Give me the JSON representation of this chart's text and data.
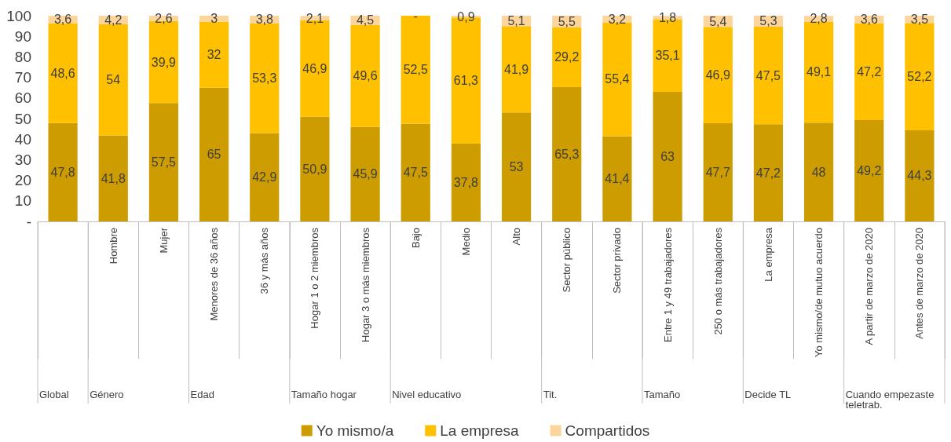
{
  "chart_data": {
    "type": "bar",
    "stacked": true,
    "categories": [
      null,
      "Hombre",
      "Mujer",
      "Menores de 36 años",
      "36 y más años",
      "Hogar 1 o 2 miembros",
      "Hogar 3 o más miembros",
      "Bajo",
      "Medio",
      "Alto",
      "Sector público",
      "Sector privado",
      "Entre 1 y 49 trabajadores",
      "250 o más trabajadores",
      "La empresa",
      "Yo mismo/de mutuo acuerdo",
      "A partir de marzo de 2020",
      "Antes de marzo de 2020"
    ],
    "series": [
      {
        "name": "Yo mismo/a",
        "color": "#cc9c00",
        "values": [
          47.8,
          41.8,
          57.5,
          65,
          42.9,
          50.9,
          45.9,
          47.5,
          37.8,
          53,
          65.3,
          41.4,
          63,
          47.7,
          47.2,
          48,
          49.2,
          44.3
        ],
        "value_labels": [
          "47,8",
          "41,8",
          "57,5",
          "65",
          "42,9",
          "50,9",
          "45,9",
          "47,5",
          "37,8",
          "53",
          "65,3",
          "41,4",
          "63",
          "47,7",
          "47,2",
          "48",
          "49,2",
          "44,3"
        ]
      },
      {
        "name": "La empresa",
        "color": "#ffc000",
        "values": [
          48.6,
          54,
          39.9,
          32,
          53.3,
          46.9,
          49.6,
          52.5,
          61.3,
          41.9,
          29.2,
          55.4,
          35.1,
          46.9,
          47.5,
          49.1,
          47.2,
          52.2
        ],
        "value_labels": [
          "48,6",
          "54",
          "39,9",
          "32",
          "53,3",
          "46,9",
          "49,6",
          "52,5",
          "61,3",
          "41,9",
          "29,2",
          "55,4",
          "35,1",
          "46,9",
          "47,5",
          "49,1",
          "47,2",
          "52,2"
        ]
      },
      {
        "name": "Compartidos",
        "color": "#fbd59b",
        "values": [
          3.6,
          4.2,
          2.6,
          3,
          3.8,
          2.1,
          4.5,
          0,
          0.9,
          5.1,
          5.5,
          3.2,
          1.8,
          5.4,
          5.3,
          2.8,
          3.6,
          3.5
        ],
        "value_labels": [
          "3,6",
          "4,2",
          "2,6",
          "3",
          "3,8",
          "2,1",
          "4,5",
          "-",
          "0,9",
          "5,1",
          "5,5",
          "3,2",
          "1,8",
          "5,4",
          "5,3",
          "2,8",
          "3,6",
          "3,5"
        ]
      }
    ],
    "ylim": [
      0,
      100
    ],
    "yticks": [
      {
        "value": 0,
        "label": "-"
      },
      10,
      20,
      30,
      40,
      50,
      60,
      70,
      80,
      90,
      100
    ],
    "grid": false,
    "legend": "bottom",
    "annotations": [
      "Global",
      "Género",
      "Edad",
      "Tamaño hogar",
      "Nivel educativo",
      "Tit.",
      "Tamaño",
      "Decide TL",
      "Cuando empezaste teletrab."
    ]
  }
}
